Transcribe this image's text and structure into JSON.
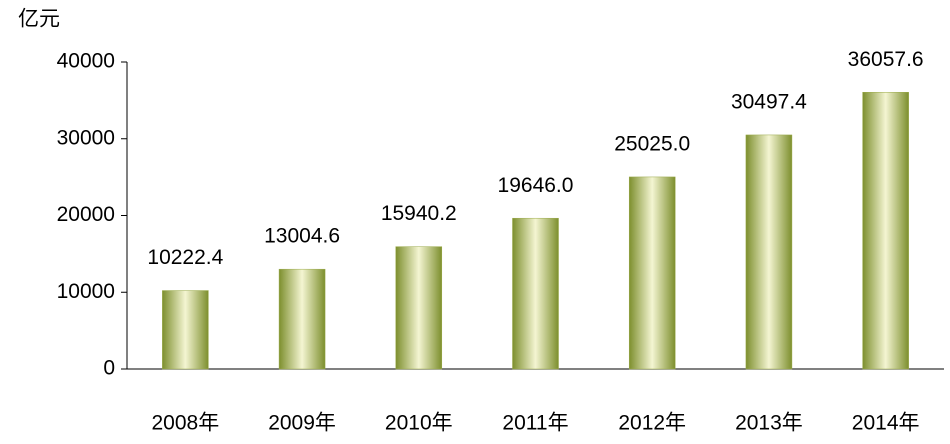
{
  "chart_data": {
    "type": "bar",
    "y_label": "亿元",
    "categories": [
      "2008年",
      "2009年",
      "2010年",
      "2011年",
      "2012年",
      "2013年",
      "2014年"
    ],
    "values": [
      10222.4,
      13004.6,
      15940.2,
      19646.0,
      25025.0,
      30497.4,
      36057.6
    ],
    "value_labels": [
      "10222.4",
      "13004.6",
      "15940.2",
      "19646.0",
      "25025.0",
      "30497.4",
      "36057.6"
    ],
    "color": "#9aaa4a",
    "ylim": [
      0,
      40000
    ],
    "yticks": [
      0,
      10000,
      20000,
      30000,
      40000
    ],
    "grid": false
  }
}
